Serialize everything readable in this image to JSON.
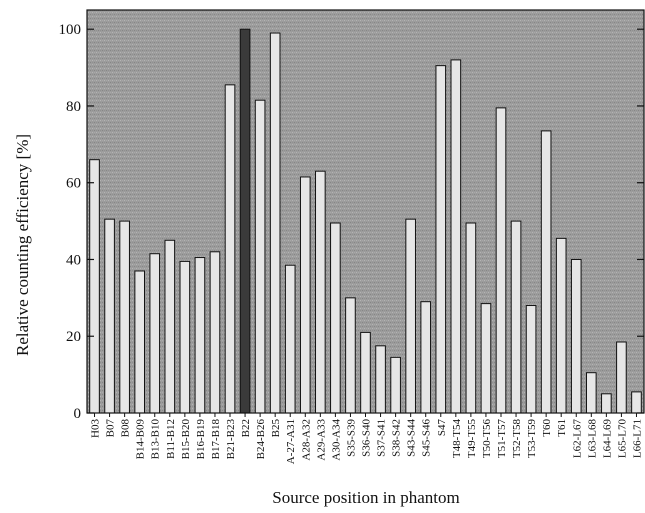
{
  "chart_data": {
    "type": "bar",
    "title": "",
    "xlabel": "Source position in phantom",
    "ylabel": "Relative counting efficiency [%]",
    "ylim": [
      0,
      105
    ],
    "yticks": [
      0,
      20,
      40,
      60,
      80,
      100
    ],
    "grid": false,
    "highlight_category": "B22",
    "colors": {
      "plot_background": "#9a9a9a",
      "bar_fill": "#e6e6e6",
      "bar_highlight": "#3a3a3a",
      "bar_stroke": "#111111",
      "axis": "#111111"
    },
    "categories": [
      "H03",
      "B07",
      "B08",
      "B14-B09",
      "B13-B10",
      "B11-B12",
      "B15-B20",
      "B16-B19",
      "B17-B18",
      "B21-B23",
      "B22",
      "B24-B26",
      "B25",
      "A-27-A31",
      "A28-A32",
      "A29-A33",
      "A30-A34",
      "S35-S39",
      "S36-S40",
      "S37-S41",
      "S38-S42",
      "S43-S44",
      "S45-S46",
      "S47",
      "T48-T54",
      "T49-T55",
      "T50-T56",
      "T51-T57",
      "T52-T58",
      "T53-T59",
      "T60",
      "T61",
      "L62-L67",
      "L63-L68",
      "L64-L69",
      "L65-L70",
      "L66-L71"
    ],
    "values": [
      66,
      50.5,
      50,
      37,
      41.5,
      45,
      39.5,
      40.5,
      42,
      85.5,
      100,
      81.5,
      99,
      38.5,
      61.5,
      63,
      49.5,
      30,
      21,
      17.5,
      14.5,
      50.5,
      29,
      90.5,
      92,
      49.5,
      28.5,
      79.5,
      50,
      28,
      73.5,
      45.5,
      40,
      10.5,
      5,
      18.5,
      5.5
    ]
  }
}
